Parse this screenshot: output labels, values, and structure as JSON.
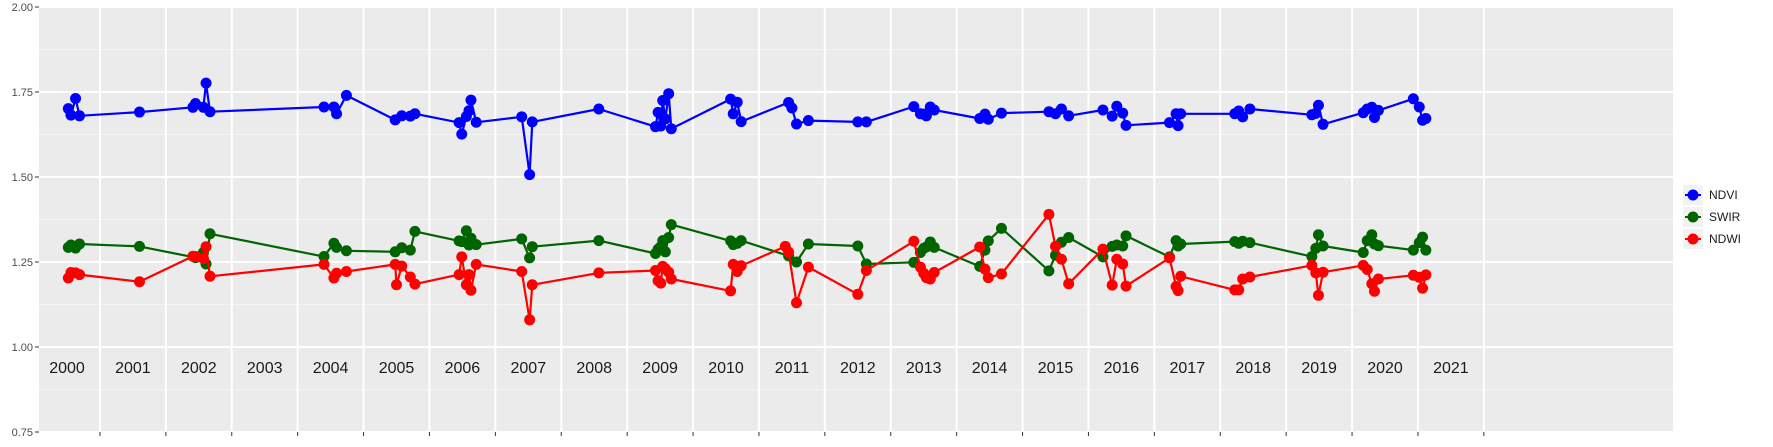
{
  "chart_data": {
    "type": "line",
    "title": "",
    "xlabel": "",
    "ylabel": "",
    "xlim": [
      2000.0,
      2021.5
    ],
    "ylim": [
      0.75,
      2.0
    ],
    "y_ticks": [
      "0.75",
      "1.00",
      "1.25",
      "1.50",
      "1.75",
      "2.00"
    ],
    "year_labels": [
      "2000",
      "2001",
      "2002",
      "2003",
      "2004",
      "2005",
      "2006",
      "2007",
      "2008",
      "2009",
      "2010",
      "2011",
      "2012",
      "2013",
      "2014",
      "2015",
      "2016",
      "2017",
      "2018",
      "2019",
      "2020",
      "2021"
    ],
    "grid": true,
    "legend_position": "right",
    "panel_background": "#EBEBEB",
    "series": [
      {
        "name": "NDVI",
        "color": "#0000FF",
        "points": [
          [
            2000.02,
            1.701
          ],
          [
            2000.06,
            1.682
          ],
          [
            2000.13,
            1.731
          ],
          [
            2000.19,
            1.68
          ],
          [
            2001.1,
            1.691
          ],
          [
            2001.91,
            1.705
          ],
          [
            2001.95,
            1.716
          ],
          [
            2002.07,
            1.705
          ],
          [
            2002.11,
            1.776
          ],
          [
            2002.17,
            1.692
          ],
          [
            2003.9,
            1.706
          ],
          [
            2004.05,
            1.706
          ],
          [
            2004.09,
            1.686
          ],
          [
            2004.24,
            1.74
          ],
          [
            2004.98,
            1.668
          ],
          [
            2005.08,
            1.68
          ],
          [
            2005.21,
            1.679
          ],
          [
            2005.28,
            1.686
          ],
          [
            2005.95,
            1.66
          ],
          [
            2005.99,
            1.626
          ],
          [
            2006.06,
            1.678
          ],
          [
            2006.1,
            1.695
          ],
          [
            2006.13,
            1.726
          ],
          [
            2006.21,
            1.661
          ],
          [
            2006.9,
            1.677
          ],
          [
            2007.02,
            1.507
          ],
          [
            2007.06,
            1.662
          ],
          [
            2008.07,
            1.7
          ],
          [
            2008.93,
            1.648
          ],
          [
            2008.97,
            1.69
          ],
          [
            2009.01,
            1.65
          ],
          [
            2009.04,
            1.725
          ],
          [
            2009.08,
            1.671
          ],
          [
            2009.13,
            1.745
          ],
          [
            2009.17,
            1.642
          ],
          [
            2010.07,
            1.729
          ],
          [
            2010.11,
            1.686
          ],
          [
            2010.17,
            1.72
          ],
          [
            2010.23,
            1.663
          ],
          [
            2010.95,
            1.719
          ],
          [
            2011.0,
            1.703
          ],
          [
            2011.07,
            1.656
          ],
          [
            2011.25,
            1.666
          ],
          [
            2012.0,
            1.662
          ],
          [
            2012.13,
            1.662
          ],
          [
            2012.85,
            1.707
          ],
          [
            2012.95,
            1.686
          ],
          [
            2013.0,
            1.685
          ],
          [
            2013.04,
            1.68
          ],
          [
            2013.1,
            1.706
          ],
          [
            2013.16,
            1.697
          ],
          [
            2013.85,
            1.672
          ],
          [
            2013.93,
            1.685
          ],
          [
            2013.98,
            1.67
          ],
          [
            2014.18,
            1.688
          ],
          [
            2014.9,
            1.692
          ],
          [
            2015.0,
            1.686
          ],
          [
            2015.09,
            1.7
          ],
          [
            2015.2,
            1.68
          ],
          [
            2015.72,
            1.697
          ],
          [
            2015.86,
            1.679
          ],
          [
            2015.93,
            1.708
          ],
          [
            2016.02,
            1.688
          ],
          [
            2016.07,
            1.652
          ],
          [
            2016.73,
            1.66
          ],
          [
            2016.83,
            1.686
          ],
          [
            2016.86,
            1.651
          ],
          [
            2016.9,
            1.686
          ],
          [
            2017.72,
            1.686
          ],
          [
            2017.78,
            1.694
          ],
          [
            2017.84,
            1.677
          ],
          [
            2017.95,
            1.7
          ],
          [
            2018.89,
            1.683
          ],
          [
            2018.95,
            1.687
          ],
          [
            2018.99,
            1.711
          ],
          [
            2019.06,
            1.655
          ],
          [
            2019.67,
            1.689
          ],
          [
            2019.73,
            1.7
          ],
          [
            2019.8,
            1.705
          ],
          [
            2019.84,
            1.675
          ],
          [
            2019.9,
            1.696
          ],
          [
            2020.43,
            1.73
          ],
          [
            2020.52,
            1.706
          ],
          [
            2020.57,
            1.667
          ],
          [
            2020.62,
            1.672
          ]
        ]
      },
      {
        "name": "SWIR",
        "color": "#006400",
        "points": [
          [
            2000.02,
            1.293
          ],
          [
            2000.06,
            1.3
          ],
          [
            2000.13,
            1.291
          ],
          [
            2000.19,
            1.303
          ],
          [
            2001.1,
            1.296
          ],
          [
            2001.95,
            1.263
          ],
          [
            2002.07,
            1.278
          ],
          [
            2002.11,
            1.244
          ],
          [
            2002.17,
            1.333
          ],
          [
            2003.9,
            1.266
          ],
          [
            2004.05,
            1.305
          ],
          [
            2004.09,
            1.293
          ],
          [
            2004.24,
            1.283
          ],
          [
            2004.98,
            1.28
          ],
          [
            2005.08,
            1.292
          ],
          [
            2005.21,
            1.285
          ],
          [
            2005.28,
            1.34
          ],
          [
            2005.95,
            1.312
          ],
          [
            2005.99,
            1.31
          ],
          [
            2006.06,
            1.342
          ],
          [
            2006.1,
            1.3
          ],
          [
            2006.13,
            1.32
          ],
          [
            2006.21,
            1.301
          ],
          [
            2006.9,
            1.318
          ],
          [
            2007.02,
            1.262
          ],
          [
            2007.06,
            1.295
          ],
          [
            2008.07,
            1.313
          ],
          [
            2008.93,
            1.275
          ],
          [
            2008.97,
            1.288
          ],
          [
            2009.01,
            1.295
          ],
          [
            2009.04,
            1.313
          ],
          [
            2009.08,
            1.28
          ],
          [
            2009.13,
            1.322
          ],
          [
            2009.17,
            1.36
          ],
          [
            2010.07,
            1.312
          ],
          [
            2010.11,
            1.301
          ],
          [
            2010.17,
            1.305
          ],
          [
            2010.23,
            1.313
          ],
          [
            2010.95,
            1.268
          ],
          [
            2011.07,
            1.25
          ],
          [
            2011.25,
            1.303
          ],
          [
            2012.0,
            1.297
          ],
          [
            2012.13,
            1.244
          ],
          [
            2012.85,
            1.249
          ],
          [
            2012.95,
            1.278
          ],
          [
            2013.0,
            1.29
          ],
          [
            2013.04,
            1.294
          ],
          [
            2013.1,
            1.309
          ],
          [
            2013.16,
            1.293
          ],
          [
            2013.85,
            1.237
          ],
          [
            2013.93,
            1.285
          ],
          [
            2013.98,
            1.312
          ],
          [
            2014.18,
            1.349
          ],
          [
            2014.9,
            1.224
          ],
          [
            2015.0,
            1.27
          ],
          [
            2015.09,
            1.308
          ],
          [
            2015.2,
            1.322
          ],
          [
            2015.72,
            1.265
          ],
          [
            2015.86,
            1.296
          ],
          [
            2015.93,
            1.3
          ],
          [
            2016.02,
            1.297
          ],
          [
            2016.07,
            1.327
          ],
          [
            2016.73,
            1.265
          ],
          [
            2016.83,
            1.313
          ],
          [
            2016.86,
            1.297
          ],
          [
            2016.9,
            1.303
          ],
          [
            2017.72,
            1.31
          ],
          [
            2017.78,
            1.305
          ],
          [
            2017.84,
            1.311
          ],
          [
            2017.95,
            1.307
          ],
          [
            2018.89,
            1.266
          ],
          [
            2018.95,
            1.29
          ],
          [
            2018.99,
            1.33
          ],
          [
            2019.06,
            1.297
          ],
          [
            2019.67,
            1.278
          ],
          [
            2019.73,
            1.313
          ],
          [
            2019.8,
            1.33
          ],
          [
            2019.84,
            1.303
          ],
          [
            2019.9,
            1.298
          ],
          [
            2020.43,
            1.285
          ],
          [
            2020.52,
            1.307
          ],
          [
            2020.57,
            1.323
          ],
          [
            2020.62,
            1.285
          ]
        ]
      },
      {
        "name": "NDWI",
        "color": "#FF0000",
        "points": [
          [
            2000.02,
            1.203
          ],
          [
            2000.06,
            1.219
          ],
          [
            2000.13,
            1.218
          ],
          [
            2000.19,
            1.213
          ],
          [
            2001.1,
            1.192
          ],
          [
            2001.91,
            1.267
          ],
          [
            2001.95,
            1.266
          ],
          [
            2002.07,
            1.26
          ],
          [
            2002.11,
            1.295
          ],
          [
            2002.17,
            1.208
          ],
          [
            2003.9,
            1.243
          ],
          [
            2004.05,
            1.203
          ],
          [
            2004.09,
            1.217
          ],
          [
            2004.24,
            1.222
          ],
          [
            2004.98,
            1.243
          ],
          [
            2005.0,
            1.183
          ],
          [
            2005.08,
            1.238
          ],
          [
            2005.21,
            1.206
          ],
          [
            2005.28,
            1.185
          ],
          [
            2005.95,
            1.213
          ],
          [
            2005.99,
            1.265
          ],
          [
            2006.06,
            1.183
          ],
          [
            2006.1,
            1.213
          ],
          [
            2006.13,
            1.167
          ],
          [
            2006.21,
            1.243
          ],
          [
            2006.9,
            1.222
          ],
          [
            2007.02,
            1.08
          ],
          [
            2007.06,
            1.183
          ],
          [
            2008.07,
            1.218
          ],
          [
            2008.93,
            1.225
          ],
          [
            2008.97,
            1.195
          ],
          [
            2009.01,
            1.188
          ],
          [
            2009.04,
            1.237
          ],
          [
            2009.08,
            1.23
          ],
          [
            2009.13,
            1.22
          ],
          [
            2009.17,
            1.2
          ],
          [
            2010.07,
            1.165
          ],
          [
            2010.11,
            1.243
          ],
          [
            2010.17,
            1.222
          ],
          [
            2010.23,
            1.239
          ],
          [
            2010.9,
            1.296
          ],
          [
            2010.95,
            1.279
          ],
          [
            2011.07,
            1.13
          ],
          [
            2011.25,
            1.235
          ],
          [
            2012.0,
            1.155
          ],
          [
            2012.13,
            1.225
          ],
          [
            2012.85,
            1.311
          ],
          [
            2012.95,
            1.235
          ],
          [
            2013.0,
            1.217
          ],
          [
            2013.04,
            1.204
          ],
          [
            2013.1,
            1.2
          ],
          [
            2013.16,
            1.219
          ],
          [
            2013.85,
            1.294
          ],
          [
            2013.93,
            1.229
          ],
          [
            2013.98,
            1.204
          ],
          [
            2014.18,
            1.215
          ],
          [
            2014.9,
            1.39
          ],
          [
            2015.0,
            1.296
          ],
          [
            2015.09,
            1.258
          ],
          [
            2015.2,
            1.186
          ],
          [
            2015.72,
            1.288
          ],
          [
            2015.86,
            1.182
          ],
          [
            2015.93,
            1.258
          ],
          [
            2016.02,
            1.244
          ],
          [
            2016.07,
            1.179
          ],
          [
            2016.73,
            1.262
          ],
          [
            2016.83,
            1.178
          ],
          [
            2016.86,
            1.166
          ],
          [
            2016.9,
            1.208
          ],
          [
            2017.72,
            1.168
          ],
          [
            2017.78,
            1.168
          ],
          [
            2017.84,
            1.2
          ],
          [
            2017.95,
            1.206
          ],
          [
            2018.89,
            1.24
          ],
          [
            2018.95,
            1.218
          ],
          [
            2018.99,
            1.152
          ],
          [
            2019.06,
            1.22
          ],
          [
            2019.67,
            1.24
          ],
          [
            2019.73,
            1.228
          ],
          [
            2019.8,
            1.186
          ],
          [
            2019.84,
            1.164
          ],
          [
            2019.9,
            1.2
          ],
          [
            2020.43,
            1.211
          ],
          [
            2020.52,
            1.205
          ],
          [
            2020.57,
            1.173
          ],
          [
            2020.62,
            1.212
          ]
        ]
      }
    ]
  }
}
